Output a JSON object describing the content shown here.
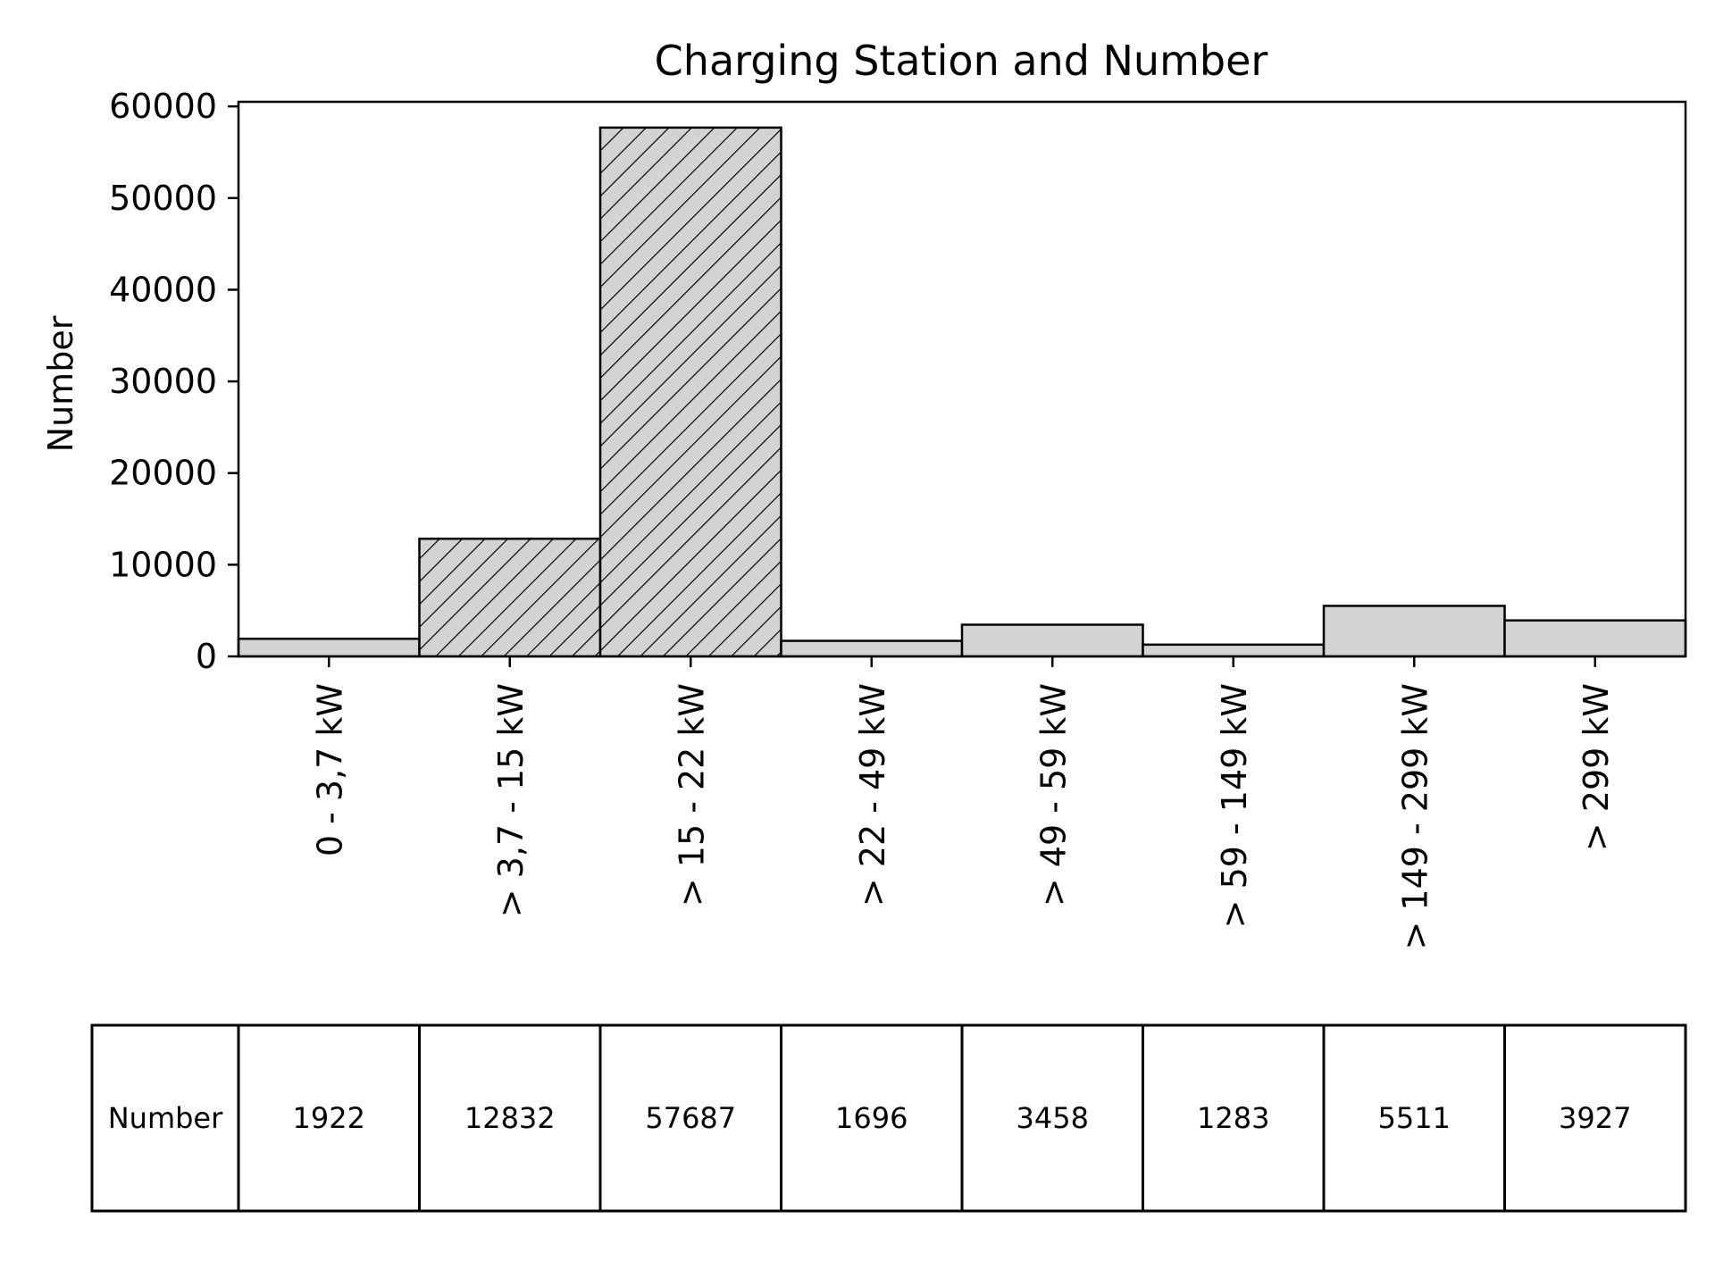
{
  "chart_data": {
    "type": "bar",
    "title": "Charging Station and Number",
    "xlabel": "",
    "ylabel": "Number",
    "ylim": [
      0,
      60500
    ],
    "yticks": [
      0,
      10000,
      20000,
      30000,
      40000,
      50000,
      60000
    ],
    "categories": [
      "0 - 3,7 kW",
      "> 3,7 - 15 kW",
      "> 15 - 22 kW",
      "> 22 - 49 kW",
      "> 49 - 59 kW",
      "> 59 - 149 kW",
      "> 149 - 299 kW",
      "> 299 kW"
    ],
    "series": [
      {
        "values": [
          1922,
          12832,
          57687,
          1696,
          3458,
          1283,
          5511,
          3927
        ],
        "hatched": [
          false,
          true,
          true,
          false,
          false,
          false,
          false,
          false
        ]
      }
    ],
    "bar_color": "#d3d3d3",
    "edge_color": "#000000",
    "grid": false,
    "table": {
      "row_label": "Number",
      "cells": [
        "1922",
        "12832",
        "57687",
        "1696",
        "3458",
        "1283",
        "5511",
        "3927"
      ]
    }
  }
}
